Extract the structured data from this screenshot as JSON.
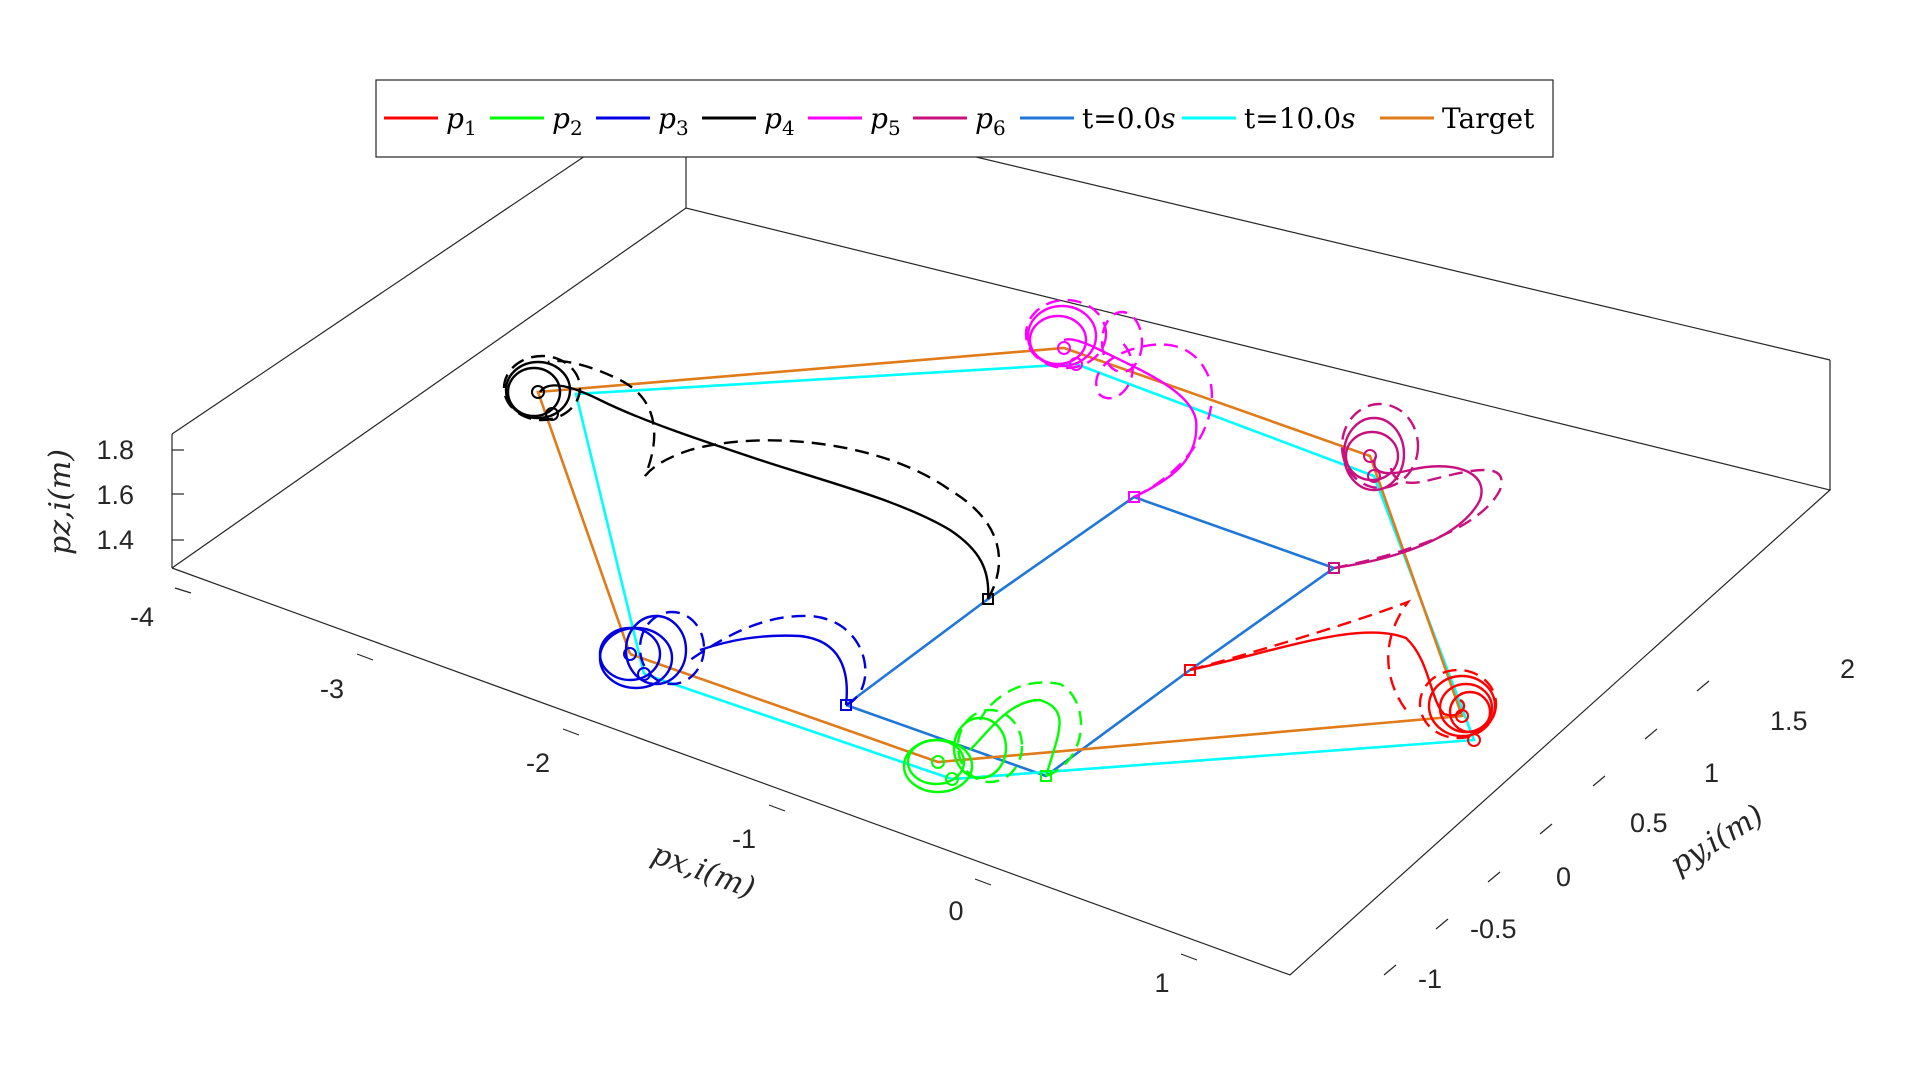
{
  "chart_data": {
    "type": "line",
    "title": "",
    "projection": "3d",
    "xlabel": "p_{x,i}(m)",
    "ylabel": "p_{y,i}(m)",
    "zlabel": "p_{z,i}(m)",
    "xlabel_display": "px,i(m)",
    "ylabel_display": "py,i(m)",
    "zlabel_display": "pz,i(m)",
    "xlim": [
      -4,
      1.5
    ],
    "ylim": [
      -1.2,
      2.2
    ],
    "zlim": [
      1.2,
      1.9
    ],
    "x_ticks": [
      "-4",
      "-3",
      "-2",
      "-1",
      "0",
      "1"
    ],
    "y_ticks": [
      "-1",
      "-0.5",
      "0",
      "0.5",
      "1",
      "1.5",
      "2"
    ],
    "z_ticks": [
      "1.4",
      "1.6",
      "1.8"
    ],
    "grid": false,
    "legend_position": "top",
    "legend": [
      {
        "label": "p",
        "sub": "1",
        "italic": true,
        "color": "#ff0000"
      },
      {
        "label": "p",
        "sub": "2",
        "italic": true,
        "color": "#00ff00"
      },
      {
        "label": "p",
        "sub": "3",
        "italic": true,
        "color": "#0000e0"
      },
      {
        "label": "p",
        "sub": "4",
        "italic": true,
        "color": "#000000"
      },
      {
        "label": "p",
        "sub": "5",
        "italic": true,
        "color": "#ff00ff"
      },
      {
        "label": "p",
        "sub": "6",
        "italic": true,
        "color": "#c8107e"
      },
      {
        "label": "t=0.0",
        "unit": "s",
        "italic": false,
        "color": "#1f77d8"
      },
      {
        "label": "t=10.0",
        "unit": "s",
        "italic": false,
        "color": "#00ffff"
      },
      {
        "label": "Target",
        "unit": "",
        "italic": false,
        "color": "#e07b1a"
      }
    ],
    "agents": [
      {
        "name": "p1",
        "color": "#ff0000",
        "start": [
          0.5,
          -0.5,
          1.55
        ],
        "final": [
          1.3,
          -0.3,
          1.55
        ]
      },
      {
        "name": "p2",
        "color": "#00ff00",
        "start": [
          0,
          -1.0,
          1.55
        ],
        "final": [
          -0.2,
          -0.9,
          1.55
        ]
      },
      {
        "name": "p3",
        "color": "#0000e0",
        "start": [
          -1.2,
          -0.5,
          1.55
        ],
        "final": [
          -2.2,
          0.1,
          1.55
        ]
      },
      {
        "name": "p4",
        "color": "#000000",
        "start": [
          -1.3,
          0.9,
          1.55
        ],
        "final": [
          -2.5,
          1.6,
          1.55
        ]
      },
      {
        "name": "p5",
        "color": "#ff00ff",
        "start": [
          -0.3,
          1.5,
          1.55
        ],
        "final": [
          -0.8,
          2.0,
          1.55
        ]
      },
      {
        "name": "p6",
        "color": "#c8107e",
        "start": [
          0.3,
          1.0,
          1.55
        ],
        "final": [
          0.9,
          1.6,
          1.55
        ]
      }
    ]
  }
}
